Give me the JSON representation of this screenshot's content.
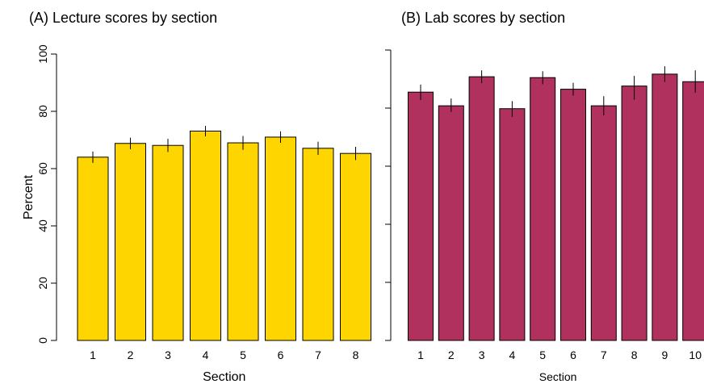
{
  "chart_data": [
    {
      "type": "bar",
      "title": "(A) Lecture scores by section",
      "xlabel": "Section",
      "ylabel": "Percent",
      "categories": [
        "1",
        "2",
        "3",
        "4",
        "5",
        "6",
        "7",
        "8"
      ],
      "values": [
        64,
        68.8,
        68.1,
        73.1,
        69,
        71,
        67.1,
        65.3
      ],
      "error_low": [
        62,
        66.8,
        65.8,
        71.3,
        66.6,
        69,
        64.8,
        63
      ],
      "error_high": [
        66,
        70.8,
        70.4,
        74.9,
        71.4,
        73,
        69.4,
        67.6
      ],
      "ylim": [
        0,
        100
      ],
      "yticks": [
        0,
        20,
        40,
        60,
        80,
        100
      ],
      "grid": false,
      "color": "#ffd500"
    },
    {
      "type": "bar",
      "title": "(B) Lab scores by section",
      "xlabel": "Section",
      "ylabel": "",
      "categories": [
        "1",
        "2",
        "3",
        "4",
        "5",
        "6",
        "7",
        "8",
        "9",
        "10"
      ],
      "values": [
        85.5,
        80.8,
        90.8,
        79.8,
        90.5,
        86.5,
        80.8,
        87.6,
        91.7,
        89.1
      ],
      "error_low": [
        82.8,
        78.7,
        88.6,
        77,
        88.2,
        84.3,
        77.5,
        82.9,
        89,
        85.3
      ],
      "error_high": [
        88.1,
        83.3,
        93,
        82.4,
        92.7,
        88.7,
        84.1,
        91.1,
        94.4,
        93
      ],
      "ylim": [
        0,
        100
      ],
      "yticks": [
        0,
        20,
        40,
        60,
        80,
        100
      ],
      "show_tick_labels_y": false,
      "grid": false,
      "color": "#b0305e"
    }
  ]
}
